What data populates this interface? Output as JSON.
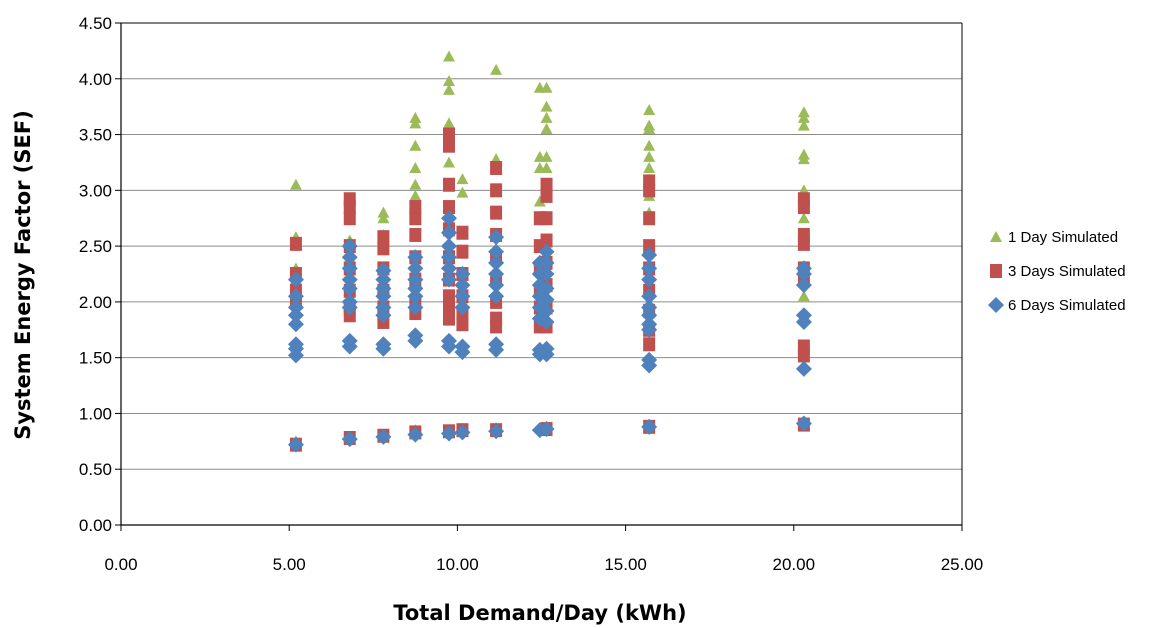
{
  "chart_data": {
    "type": "scatter",
    "xlabel": "Total Demand/Day (kWh)",
    "ylabel": "System Energy Factor (SEF)",
    "xlim": [
      0,
      25
    ],
    "ylim": [
      0,
      4.5
    ],
    "x_ticks": [
      "0.00",
      "5.00",
      "10.00",
      "15.00",
      "20.00",
      "25.00"
    ],
    "y_ticks": [
      "0.00",
      "0.50",
      "1.00",
      "1.50",
      "2.00",
      "2.50",
      "3.00",
      "3.50",
      "4.00",
      "4.50"
    ],
    "grid": "horizontal",
    "legend_position": "right",
    "series": [
      {
        "name": "1 Day Simulated",
        "color": "#9bbb59",
        "marker": "triangle",
        "points": [
          [
            5.2,
            3.05
          ],
          [
            5.2,
            2.58
          ],
          [
            5.2,
            2.3
          ],
          [
            5.2,
            2.2
          ],
          [
            5.2,
            0.75
          ],
          [
            6.8,
            2.9
          ],
          [
            6.8,
            2.75
          ],
          [
            6.8,
            2.55
          ],
          [
            6.8,
            0.78
          ],
          [
            7.8,
            2.8
          ],
          [
            7.8,
            2.75
          ],
          [
            7.8,
            2.6
          ],
          [
            7.8,
            0.8
          ],
          [
            8.75,
            3.65
          ],
          [
            8.75,
            3.6
          ],
          [
            8.75,
            3.4
          ],
          [
            8.75,
            3.2
          ],
          [
            8.75,
            3.05
          ],
          [
            8.75,
            2.95
          ],
          [
            8.75,
            0.85
          ],
          [
            9.75,
            4.2
          ],
          [
            9.75,
            3.98
          ],
          [
            9.75,
            3.9
          ],
          [
            9.75,
            3.6
          ],
          [
            9.75,
            3.55
          ],
          [
            9.75,
            3.25
          ],
          [
            9.75,
            0.85
          ],
          [
            10.15,
            3.1
          ],
          [
            10.15,
            2.98
          ],
          [
            10.15,
            0.86
          ],
          [
            11.15,
            4.08
          ],
          [
            11.15,
            3.28
          ],
          [
            11.15,
            3.2
          ],
          [
            11.15,
            0.87
          ],
          [
            12.45,
            3.92
          ],
          [
            12.45,
            3.3
          ],
          [
            12.45,
            3.2
          ],
          [
            12.45,
            2.9
          ],
          [
            12.65,
            3.92
          ],
          [
            12.65,
            3.75
          ],
          [
            12.65,
            3.65
          ],
          [
            12.65,
            3.55
          ],
          [
            12.65,
            3.3
          ],
          [
            12.65,
            3.2
          ],
          [
            12.65,
            0.88
          ],
          [
            15.7,
            3.72
          ],
          [
            15.7,
            3.58
          ],
          [
            15.7,
            3.55
          ],
          [
            15.7,
            3.4
          ],
          [
            15.7,
            3.3
          ],
          [
            15.7,
            3.2
          ],
          [
            15.7,
            2.95
          ],
          [
            15.7,
            2.8
          ],
          [
            15.7,
            0.9
          ],
          [
            20.3,
            3.7
          ],
          [
            20.3,
            3.65
          ],
          [
            20.3,
            3.58
          ],
          [
            20.3,
            3.32
          ],
          [
            20.3,
            3.28
          ],
          [
            20.3,
            3.0
          ],
          [
            20.3,
            2.75
          ],
          [
            20.3,
            2.05
          ],
          [
            20.3,
            0.92
          ]
        ]
      },
      {
        "name": "3 Days Simulated",
        "color": "#c0504d",
        "marker": "square",
        "points": [
          [
            5.2,
            2.52
          ],
          [
            5.2,
            2.25
          ],
          [
            5.2,
            2.1
          ],
          [
            5.2,
            2.0
          ],
          [
            5.2,
            0.72
          ],
          [
            6.8,
            2.92
          ],
          [
            6.8,
            2.85
          ],
          [
            6.8,
            2.75
          ],
          [
            6.8,
            2.5
          ],
          [
            6.8,
            2.3
          ],
          [
            6.8,
            2.1
          ],
          [
            6.8,
            1.95
          ],
          [
            6.8,
            1.88
          ],
          [
            6.8,
            0.78
          ],
          [
            7.8,
            2.58
          ],
          [
            7.8,
            2.48
          ],
          [
            7.8,
            2.3
          ],
          [
            7.8,
            2.1
          ],
          [
            7.8,
            1.95
          ],
          [
            7.8,
            1.82
          ],
          [
            7.8,
            0.8
          ],
          [
            8.75,
            2.85
          ],
          [
            8.75,
            2.75
          ],
          [
            8.75,
            2.6
          ],
          [
            8.75,
            2.4
          ],
          [
            8.75,
            2.2
          ],
          [
            8.75,
            2.0
          ],
          [
            8.75,
            1.9
          ],
          [
            8.75,
            0.83
          ],
          [
            9.75,
            3.5
          ],
          [
            9.75,
            3.4
          ],
          [
            9.75,
            3.05
          ],
          [
            9.75,
            2.85
          ],
          [
            9.75,
            2.65
          ],
          [
            9.75,
            2.4
          ],
          [
            9.75,
            2.2
          ],
          [
            9.75,
            2.05
          ],
          [
            9.75,
            1.95
          ],
          [
            9.75,
            1.85
          ],
          [
            9.75,
            0.84
          ],
          [
            10.15,
            2.62
          ],
          [
            10.15,
            2.45
          ],
          [
            10.15,
            2.25
          ],
          [
            10.15,
            2.05
          ],
          [
            10.15,
            1.9
          ],
          [
            10.15,
            1.8
          ],
          [
            10.15,
            0.85
          ],
          [
            11.15,
            3.2
          ],
          [
            11.15,
            3.0
          ],
          [
            11.15,
            2.8
          ],
          [
            11.15,
            2.6
          ],
          [
            11.15,
            2.4
          ],
          [
            11.15,
            2.2
          ],
          [
            11.15,
            2.0
          ],
          [
            11.15,
            1.85
          ],
          [
            11.15,
            1.78
          ],
          [
            11.15,
            0.85
          ],
          [
            12.45,
            2.75
          ],
          [
            12.45,
            2.5
          ],
          [
            12.45,
            2.3
          ],
          [
            12.45,
            2.1
          ],
          [
            12.45,
            1.95
          ],
          [
            12.45,
            1.78
          ],
          [
            12.65,
            3.05
          ],
          [
            12.65,
            2.95
          ],
          [
            12.65,
            2.75
          ],
          [
            12.65,
            2.55
          ],
          [
            12.65,
            2.35
          ],
          [
            12.65,
            2.15
          ],
          [
            12.65,
            1.95
          ],
          [
            12.65,
            1.78
          ],
          [
            12.65,
            0.86
          ],
          [
            15.7,
            3.08
          ],
          [
            15.7,
            3.0
          ],
          [
            15.7,
            2.75
          ],
          [
            15.7,
            2.5
          ],
          [
            15.7,
            2.3
          ],
          [
            15.7,
            2.1
          ],
          [
            15.7,
            1.92
          ],
          [
            15.7,
            1.75
          ],
          [
            15.7,
            1.62
          ],
          [
            15.7,
            0.88
          ],
          [
            20.3,
            2.92
          ],
          [
            20.3,
            2.85
          ],
          [
            20.3,
            2.6
          ],
          [
            20.3,
            2.52
          ],
          [
            20.3,
            2.3
          ],
          [
            20.3,
            2.2
          ],
          [
            20.3,
            1.6
          ],
          [
            20.3,
            1.52
          ],
          [
            20.3,
            0.9
          ]
        ]
      },
      {
        "name": "6 Days Simulated",
        "color": "#4f81bd",
        "marker": "diamond",
        "points": [
          [
            5.2,
            2.2
          ],
          [
            5.2,
            2.05
          ],
          [
            5.2,
            1.95
          ],
          [
            5.2,
            1.88
          ],
          [
            5.2,
            1.8
          ],
          [
            5.2,
            1.62
          ],
          [
            5.2,
            1.58
          ],
          [
            5.2,
            1.52
          ],
          [
            5.2,
            0.72
          ],
          [
            6.8,
            2.5
          ],
          [
            6.8,
            2.4
          ],
          [
            6.8,
            2.3
          ],
          [
            6.8,
            2.2
          ],
          [
            6.8,
            2.12
          ],
          [
            6.8,
            2.0
          ],
          [
            6.8,
            1.95
          ],
          [
            6.8,
            1.65
          ],
          [
            6.8,
            1.6
          ],
          [
            6.8,
            0.77
          ],
          [
            7.8,
            2.28
          ],
          [
            7.8,
            2.2
          ],
          [
            7.8,
            2.12
          ],
          [
            7.8,
            2.05
          ],
          [
            7.8,
            1.95
          ],
          [
            7.8,
            1.88
          ],
          [
            7.8,
            1.62
          ],
          [
            7.8,
            1.58
          ],
          [
            7.8,
            0.79
          ],
          [
            8.75,
            2.4
          ],
          [
            8.75,
            2.3
          ],
          [
            8.75,
            2.2
          ],
          [
            8.75,
            2.12
          ],
          [
            8.75,
            2.05
          ],
          [
            8.75,
            1.95
          ],
          [
            8.75,
            1.7
          ],
          [
            8.75,
            1.65
          ],
          [
            8.75,
            0.81
          ],
          [
            9.75,
            2.75
          ],
          [
            9.75,
            2.62
          ],
          [
            9.75,
            2.5
          ],
          [
            9.75,
            2.4
          ],
          [
            9.75,
            2.3
          ],
          [
            9.75,
            2.2
          ],
          [
            9.75,
            1.65
          ],
          [
            9.75,
            1.6
          ],
          [
            9.75,
            0.82
          ],
          [
            10.15,
            2.25
          ],
          [
            10.15,
            2.15
          ],
          [
            10.15,
            2.05
          ],
          [
            10.15,
            1.95
          ],
          [
            10.15,
            1.6
          ],
          [
            10.15,
            1.55
          ],
          [
            10.15,
            0.83
          ],
          [
            11.15,
            2.58
          ],
          [
            11.15,
            2.45
          ],
          [
            11.15,
            2.35
          ],
          [
            11.15,
            2.25
          ],
          [
            11.15,
            2.15
          ],
          [
            11.15,
            2.05
          ],
          [
            11.15,
            1.62
          ],
          [
            11.15,
            1.57
          ],
          [
            11.15,
            0.84
          ],
          [
            12.45,
            2.35
          ],
          [
            12.45,
            2.25
          ],
          [
            12.45,
            2.15
          ],
          [
            12.45,
            2.05
          ],
          [
            12.45,
            1.95
          ],
          [
            12.45,
            1.85
          ],
          [
            12.45,
            1.57
          ],
          [
            12.45,
            1.53
          ],
          [
            12.45,
            0.85
          ],
          [
            12.65,
            2.45
          ],
          [
            12.65,
            2.35
          ],
          [
            12.65,
            2.25
          ],
          [
            12.65,
            2.12
          ],
          [
            12.65,
            2.02
          ],
          [
            12.65,
            1.92
          ],
          [
            12.65,
            1.82
          ],
          [
            12.65,
            1.58
          ],
          [
            12.65,
            1.53
          ],
          [
            12.65,
            0.86
          ],
          [
            15.7,
            2.42
          ],
          [
            15.7,
            2.3
          ],
          [
            15.7,
            2.2
          ],
          [
            15.7,
            2.05
          ],
          [
            15.7,
            1.95
          ],
          [
            15.7,
            1.88
          ],
          [
            15.7,
            1.8
          ],
          [
            15.7,
            1.75
          ],
          [
            15.7,
            1.48
          ],
          [
            15.7,
            1.43
          ],
          [
            15.7,
            0.88
          ],
          [
            20.3,
            2.3
          ],
          [
            20.3,
            2.25
          ],
          [
            20.3,
            2.15
          ],
          [
            20.3,
            1.88
          ],
          [
            20.3,
            1.82
          ],
          [
            20.3,
            1.4
          ],
          [
            20.3,
            0.91
          ]
        ]
      }
    ]
  }
}
